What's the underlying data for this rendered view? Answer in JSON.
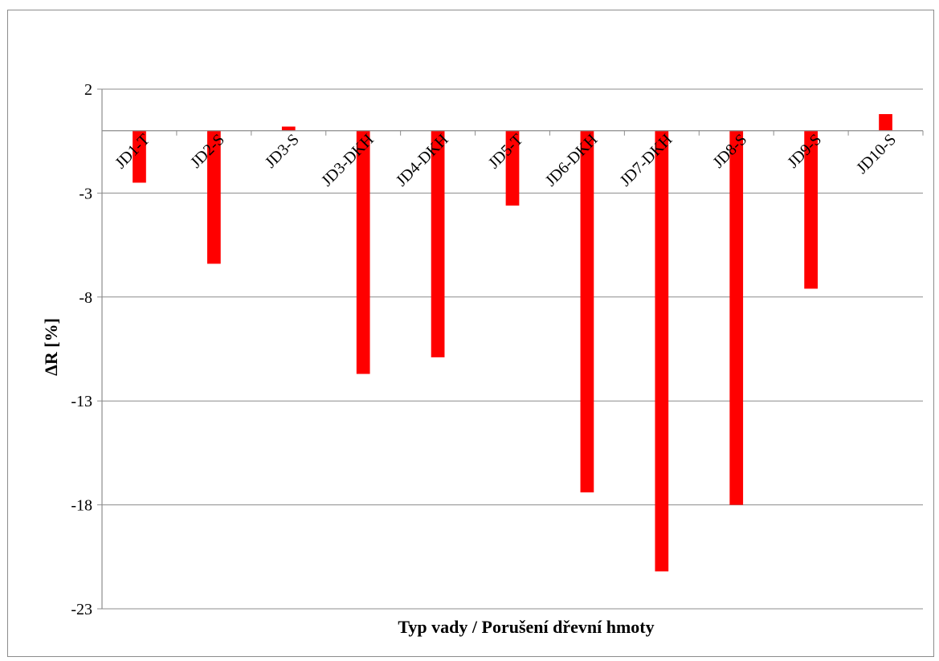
{
  "chart_data": {
    "type": "bar",
    "categories": [
      "JD1-T",
      "JD2-S",
      "JD3-S",
      "JD3-DKH",
      "JD4-DKH",
      "JD5-T",
      "JD6-DKH",
      "JD7-DKH",
      "JD8-S",
      "JD9-S",
      "JD10-S"
    ],
    "series": [
      {
        "values": [
          -2.5,
          -6.4,
          0.2,
          -11.7,
          -10.9,
          -3.6,
          -17.4,
          -21.2,
          -18.0,
          -7.6,
          0.8
        ]
      }
    ],
    "title": "",
    "xlabel": "Typ vady / Porušení dřevní hmoty",
    "ylabel": "ΔR [%]",
    "ylim": [
      -23,
      2
    ],
    "yticks": [
      2,
      -3,
      -8,
      -13,
      -18,
      -23
    ],
    "ytick_labels": [
      "2",
      "-3",
      "-8",
      "-13",
      "-18",
      "-23"
    ],
    "grid": true,
    "legend": "none",
    "colors": {
      "bar": "#ff0000",
      "grid": "#8c8c8c",
      "axis": "#8c8c8c",
      "frame": "#8c8c8c"
    }
  }
}
